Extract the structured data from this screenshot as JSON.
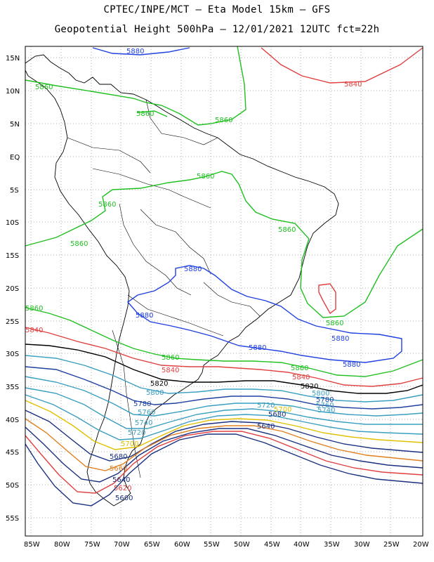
{
  "title_line1": "CPTEC/INPE/MCT –  Eta Model 15km – GFS",
  "title_line2": "Geopotential Height 500hPa – 12/01/2021 12UTC fct=22h",
  "lat_labels": [
    "15N",
    "10N",
    "5N",
    "EQ",
    "5S",
    "10S",
    "15S",
    "20S",
    "25S",
    "30S",
    "35S",
    "40S",
    "45S",
    "50S",
    "55S"
  ],
  "lon_labels": [
    "85W",
    "80W",
    "75W",
    "70W",
    "65W",
    "60W",
    "55W",
    "50W",
    "45W",
    "40W",
    "35W",
    "30W",
    "25W",
    "20W"
  ],
  "contour_labels": [
    {
      "text": "5880",
      "color": "#2040e0"
    },
    {
      "text": "5840",
      "color": "#e04040"
    },
    {
      "text": "5860",
      "color": "#20c020"
    },
    {
      "text": "5860",
      "color": "#20c020"
    },
    {
      "text": "5860",
      "color": "#20c020"
    },
    {
      "text": "5860",
      "color": "#20c020"
    },
    {
      "text": "5860",
      "color": "#20c020"
    },
    {
      "text": "5860",
      "color": "#20c020"
    },
    {
      "text": "5860",
      "color": "#20c020"
    },
    {
      "text": "5880",
      "color": "#2040e0"
    },
    {
      "text": "5880",
      "color": "#2040e0"
    },
    {
      "text": "5880",
      "color": "#2040e0"
    },
    {
      "text": "5880",
      "color": "#2040e0"
    },
    {
      "text": "5880",
      "color": "#2040e0"
    },
    {
      "text": "5860",
      "color": "#20c020"
    },
    {
      "text": "5860",
      "color": "#20c020"
    },
    {
      "text": "5860",
      "color": "#20c020"
    },
    {
      "text": "5860",
      "color": "#20c020"
    },
    {
      "text": "5840",
      "color": "#e04040"
    },
    {
      "text": "5840",
      "color": "#e04040"
    },
    {
      "text": "5840",
      "color": "#e04040"
    },
    {
      "text": "5820",
      "color": "#000000"
    },
    {
      "text": "5820",
      "color": "#000000"
    },
    {
      "text": "5800",
      "color": "#3a9fc0"
    },
    {
      "text": "5800",
      "color": "#3a9fc0"
    },
    {
      "text": "5780",
      "color": "#2040a0"
    },
    {
      "text": "5780",
      "color": "#2040a0"
    },
    {
      "text": "5760",
      "color": "#3a9fc0"
    },
    {
      "text": "5760",
      "color": "#3a9fc0"
    },
    {
      "text": "5740",
      "color": "#3a9fc0"
    },
    {
      "text": "5740",
      "color": "#3a9fc0"
    },
    {
      "text": "5720",
      "color": "#3a9fc0"
    },
    {
      "text": "5720",
      "color": "#3a9fc0"
    },
    {
      "text": "5700",
      "color": "#e0c000"
    },
    {
      "text": "5700",
      "color": "#e0c000"
    },
    {
      "text": "5680",
      "color": "#1a3080"
    },
    {
      "text": "5680",
      "color": "#1a3080"
    },
    {
      "text": "5660",
      "color": "#e08020"
    },
    {
      "text": "5640",
      "color": "#1a3080"
    },
    {
      "text": "5640",
      "color": "#1a3080"
    },
    {
      "text": "5620",
      "color": "#e04040"
    },
    {
      "text": "5600",
      "color": "#1a3080"
    }
  ]
}
